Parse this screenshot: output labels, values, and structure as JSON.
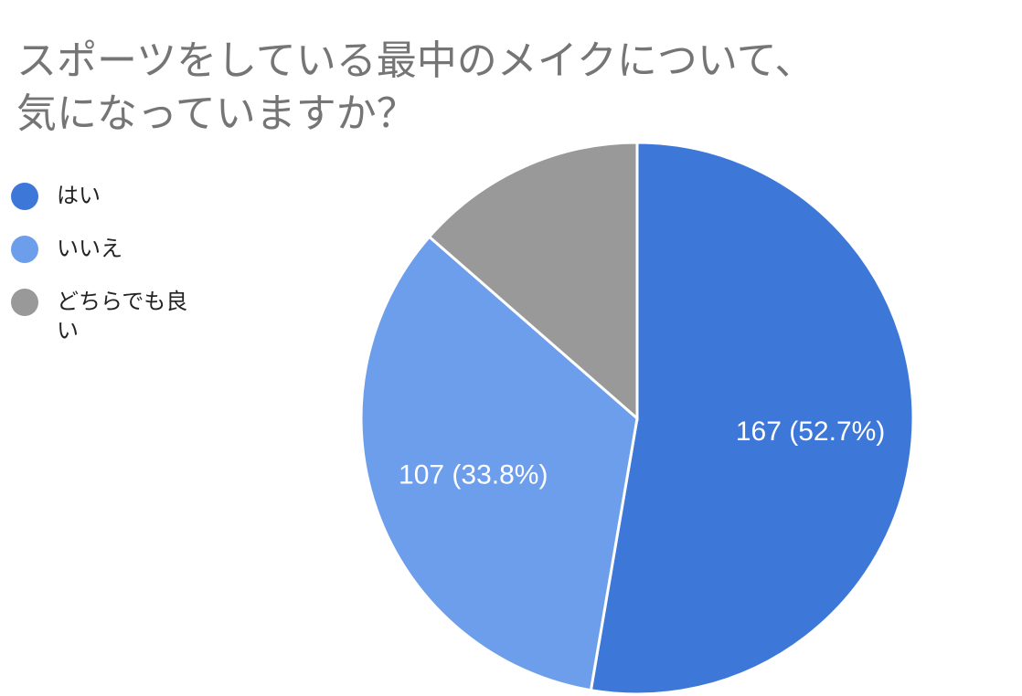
{
  "chart_data": {
    "type": "pie",
    "title_lines": [
      "スポーツをしている最中のメイクについて、",
      "気になっていますか？"
    ],
    "categories": [
      "はい",
      "いいえ",
      "どちらでも良い"
    ],
    "values": [
      167,
      107,
      43
    ],
    "percentages": [
      "52.7%",
      "33.8%",
      "13.6%"
    ],
    "data_labels": [
      "167 (52.7%)",
      "107 (33.8%)",
      ""
    ],
    "colors": [
      "#3d78d8",
      "#6d9eeb",
      "#999999"
    ],
    "start_angle_deg": 0,
    "direction": "clockwise",
    "legend_position": "left"
  }
}
